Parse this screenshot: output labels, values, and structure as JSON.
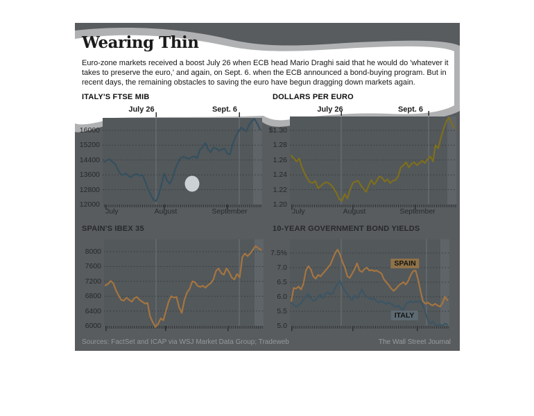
{
  "title": "Wearing Thin",
  "intro": "Euro-zone markets received a boost July 26 when ECB head Mario Draghi said that he would do 'whatever it takes to preserve the euro,' and again, on Sept. 6. when the ECB announced a bond-buying program. But in recent days, the remaining obstacles to saving the euro have begun dragging down markets again.",
  "footer": {
    "sources": "Sources: FactSet and ICAP via WSJ Market Data Group; Tradeweb",
    "credit": "The Wall Street Journal"
  },
  "colors": {
    "board": "#595c5e",
    "plot": "#53585b",
    "recent_band": "#5f6468",
    "grid": "#34383b",
    "tick": "#2c3032",
    "annotation_line": "#6e7477",
    "blob_rim": "#b0b1b2",
    "blob_fill": "#ffffff",
    "spot": "#ccd1d5",
    "ftse_line": "#34505f",
    "euro_line": "#7e6f1c",
    "ibex_line": "#a5753f",
    "spain_line": "#a5753f",
    "italy_line": "#3b5563"
  },
  "chart_data": [
    {
      "type": "line",
      "title": "ITALY'S FTSE MIB",
      "x_months": [
        "July",
        "August",
        "September"
      ],
      "annotations": [
        {
          "label": "July 26"
        },
        {
          "label": "Sept. 6"
        }
      ],
      "y_ticks": [
        "16000",
        "15200",
        "14400",
        "13600",
        "12800",
        "12000"
      ],
      "ylim": [
        12000,
        16700
      ],
      "grid_step": 800,
      "series": [
        {
          "name": "FTSE MIB",
          "color": "#34505f",
          "values": [
            14300,
            14380,
            14450,
            14300,
            14200,
            13900,
            13650,
            13600,
            13680,
            13520,
            13480,
            13620,
            13650,
            13550,
            13600,
            13280,
            12850,
            12550,
            12250,
            12180,
            12520,
            13100,
            13680,
            13300,
            13120,
            13400,
            13900,
            14250,
            14500,
            14580,
            14520,
            14480,
            14550,
            14600,
            14500,
            14950,
            15100,
            15320,
            14980,
            14820,
            15080,
            15020,
            14900,
            14980,
            15020,
            14750,
            14700,
            15250,
            15650,
            15900,
            16150,
            16050,
            15950,
            16300,
            16500,
            16620,
            16350,
            16050
          ]
        }
      ]
    },
    {
      "type": "line",
      "title": "DOLLARS PER EURO",
      "x_months": [
        "July",
        "August",
        "September"
      ],
      "annotations": [
        {
          "label": "July 26"
        },
        {
          "label": "Sept. 6"
        }
      ],
      "y_ticks": [
        "$1.30",
        "1.28",
        "1.26",
        "1.24",
        "1.22",
        "1.20"
      ],
      "ylim": [
        1.2,
        1.32
      ],
      "grid_step": 0.02,
      "series": [
        {
          "name": "Dollars per euro",
          "color": "#7e6f1c",
          "values": [
            1.266,
            1.262,
            1.258,
            1.262,
            1.25,
            1.242,
            1.235,
            1.23,
            1.229,
            1.232,
            1.222,
            1.225,
            1.228,
            1.23,
            1.229,
            1.226,
            1.221,
            1.215,
            1.207,
            1.205,
            1.214,
            1.208,
            1.22,
            1.229,
            1.231,
            1.232,
            1.226,
            1.221,
            1.217,
            1.226,
            1.233,
            1.227,
            1.232,
            1.238,
            1.236,
            1.231,
            1.234,
            1.229,
            1.232,
            1.233,
            1.238,
            1.25,
            1.253,
            1.257,
            1.25,
            1.255,
            1.257,
            1.253,
            1.256,
            1.259,
            1.256,
            1.261,
            1.265,
            1.258,
            1.28,
            1.276,
            1.29,
            1.302,
            1.312,
            1.317,
            1.31,
            1.303
          ]
        }
      ]
    },
    {
      "type": "line",
      "title": "SPAIN'S IBEX 35",
      "x_months": [
        "July",
        "August",
        "September"
      ],
      "annotations": [],
      "y_ticks": [
        "8000",
        "7600",
        "7200",
        "6800",
        "6400",
        "6000"
      ],
      "ylim": [
        6000,
        8250
      ],
      "grid_step": 400,
      "series": [
        {
          "name": "IBEX 35",
          "color": "#a5753f",
          "values": [
            7090,
            7130,
            7210,
            7150,
            6960,
            6820,
            6700,
            6680,
            6760,
            6700,
            6650,
            6750,
            6780,
            6700,
            6650,
            6600,
            6620,
            6250,
            6100,
            5970,
            6050,
            6200,
            6150,
            6400,
            6650,
            6800,
            6760,
            6780,
            6500,
            6350,
            6700,
            6900,
            7000,
            7200,
            7180,
            7080,
            7050,
            7080,
            7030,
            7100,
            7150,
            7250,
            7480,
            7550,
            7420,
            7380,
            7550,
            7450,
            7300,
            7250,
            7400,
            7300,
            7850,
            7950,
            7880,
            7950,
            8050,
            8150,
            8100,
            8050
          ]
        }
      ]
    },
    {
      "type": "line",
      "title": "10-YEAR GOVERNMENT BOND YIELDS",
      "x_months": [
        "July",
        "August",
        "September"
      ],
      "annotations": [],
      "y_ticks": [
        "7.5%",
        "7.0",
        "6.5",
        "6.0",
        "5.5",
        "5.0"
      ],
      "ylim": [
        5.0,
        7.7
      ],
      "grid_step": 0.5,
      "series": [
        {
          "name": "SPAIN",
          "color": "#a5753f",
          "values": [
            5.85,
            6.3,
            6.28,
            6.35,
            6.25,
            6.45,
            6.9,
            7.05,
            6.95,
            6.7,
            6.62,
            6.75,
            6.7,
            6.8,
            6.9,
            7.0,
            7.1,
            7.3,
            7.5,
            7.62,
            7.45,
            7.2,
            7.0,
            6.7,
            6.65,
            6.8,
            6.95,
            7.15,
            6.9,
            6.85,
            6.95,
            7.0,
            6.9,
            6.92,
            6.88,
            6.9,
            6.85,
            6.8,
            6.6,
            6.5,
            6.4,
            6.28,
            6.2,
            6.28,
            6.38,
            6.45,
            6.5,
            6.42,
            6.55,
            6.75,
            6.88,
            6.9,
            6.6,
            6.2,
            5.85,
            5.76,
            5.8,
            5.74,
            5.7,
            5.76,
            5.7,
            5.66,
            5.78,
            6.0,
            5.88
          ]
        },
        {
          "name": "ITALY",
          "color": "#3b5563",
          "values": [
            5.8,
            5.72,
            5.65,
            5.7,
            5.78,
            5.9,
            6.0,
            6.1,
            5.95,
            5.86,
            5.9,
            6.0,
            6.08,
            5.95,
            6.1,
            6.15,
            6.08,
            6.12,
            6.3,
            6.45,
            6.55,
            6.35,
            6.2,
            6.1,
            5.95,
            5.88,
            6.05,
            5.95,
            6.1,
            6.25,
            6.08,
            6.0,
            5.95,
            5.9,
            5.95,
            5.85,
            5.8,
            5.85,
            5.8,
            5.75,
            5.8,
            5.75,
            5.7,
            5.65,
            5.7,
            5.6,
            5.55,
            5.75,
            5.8,
            5.85,
            5.8,
            5.85,
            5.82,
            5.85,
            5.7,
            5.45,
            5.2,
            5.08,
            5.15,
            5.05,
            5.0,
            5.05,
            5.0,
            5.08,
            5.04
          ]
        }
      ]
    }
  ]
}
